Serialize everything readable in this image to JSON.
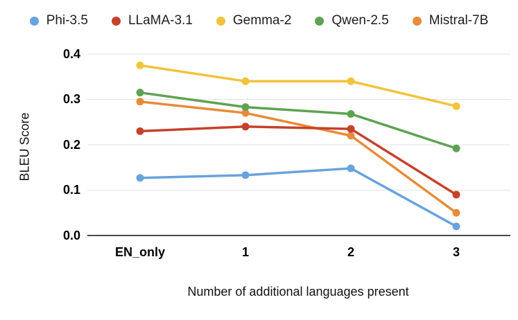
{
  "chart_data": {
    "type": "line",
    "title": "",
    "xlabel": "Number of additional languages present",
    "ylabel": "BLEU Score",
    "categories": [
      "EN_only",
      "1",
      "2",
      "3"
    ],
    "series": [
      {
        "name": "Phi-3.5",
        "color": "#68A3DC",
        "values": [
          0.127,
          0.133,
          0.148,
          0.02
        ]
      },
      {
        "name": "LLaMA-3.1",
        "color": "#C6412B",
        "values": [
          0.23,
          0.24,
          0.235,
          0.09
        ]
      },
      {
        "name": "Gemma-2",
        "color": "#F2C33C",
        "values": [
          0.375,
          0.34,
          0.34,
          0.285
        ]
      },
      {
        "name": "Qwen-2.5",
        "color": "#5EA253",
        "values": [
          0.315,
          0.283,
          0.268,
          0.192
        ]
      },
      {
        "name": "Mistral-7B",
        "color": "#E68C3A",
        "values": [
          0.295,
          0.27,
          0.22,
          0.05
        ]
      }
    ],
    "ylim": [
      0,
      0.4
    ],
    "yticks": [
      "0.0",
      "0.1",
      "0.2",
      "0.3",
      "0.4"
    ],
    "grid": true,
    "legend_position": "top",
    "marker": "circle"
  },
  "colors": {
    "gridline": "#E2E2E2",
    "axis_line": "#4A4A4A",
    "tick_text": "#000000"
  }
}
